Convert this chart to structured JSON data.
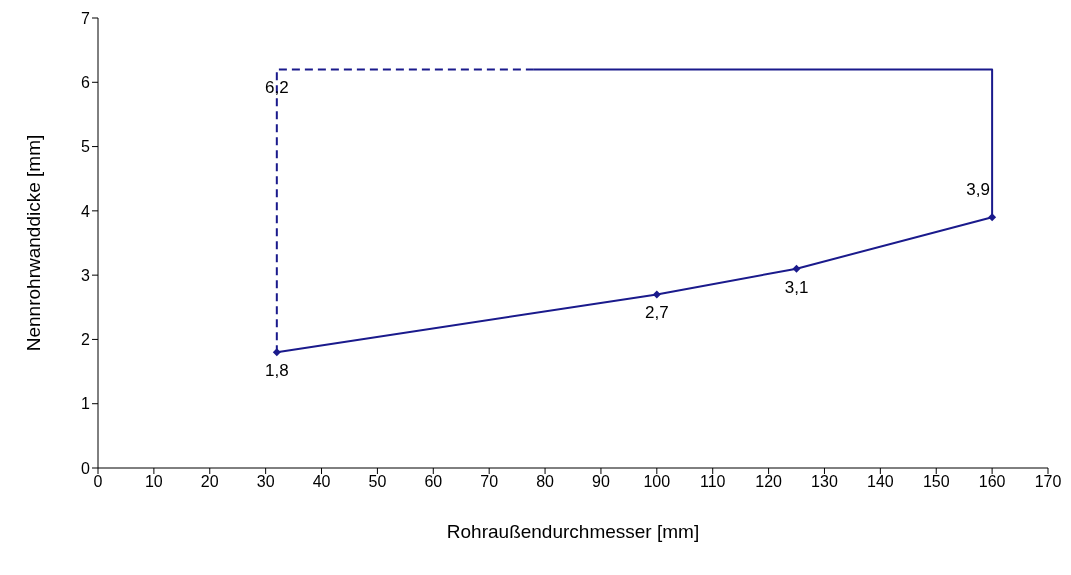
{
  "chart_data": {
    "type": "line",
    "xlabel": "Rohraußendurchmesser  [mm]",
    "ylabel": "Nennrohrwanddicke  [mm]",
    "xlim": [
      0,
      170
    ],
    "xticks": [
      0,
      10,
      20,
      30,
      40,
      50,
      60,
      70,
      80,
      90,
      100,
      110,
      120,
      130,
      140,
      150,
      160,
      170
    ],
    "ylim": [
      0,
      7
    ],
    "yticks": [
      0,
      1,
      2,
      3,
      4,
      5,
      6,
      7
    ],
    "series": [
      {
        "color": "#1a1a8c",
        "x": [
          32,
          100,
          125,
          160
        ],
        "values": [
          1.8,
          2.7,
          3.1,
          3.9
        ],
        "marker": "diamond",
        "line_style": "solid",
        "value_labels": [
          "1,8",
          "2,7",
          "3,1",
          "3,9"
        ]
      },
      {
        "color": "#1a1a8c",
        "x": [
          160,
          160,
          78
        ],
        "values": [
          3.9,
          6.2,
          6.2
        ],
        "marker": "none",
        "line_style": "solid"
      },
      {
        "color": "#1a1a8c",
        "x": [
          78,
          32,
          32
        ],
        "values": [
          6.2,
          6.2,
          1.8
        ],
        "marker": "none",
        "line_style": "dashed",
        "value_labels": [
          null,
          "6,2",
          null
        ]
      }
    ]
  }
}
